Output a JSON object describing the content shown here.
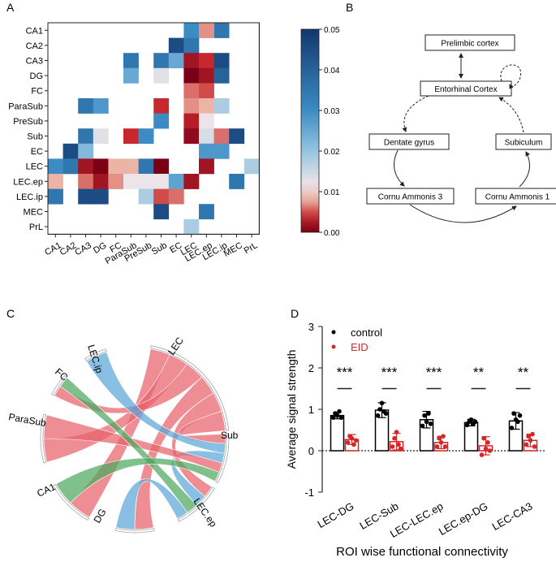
{
  "panels": {
    "a": "A",
    "b": "B",
    "c": "C",
    "d": "D"
  },
  "colors": {
    "control": "#000000",
    "eid": "#d62728",
    "chord_red": "#e8636b",
    "chord_blue": "#5aa6d8",
    "chord_green": "#4da860"
  },
  "chart_data": [
    {
      "type": "heatmap",
      "panel": "A",
      "rows": [
        "CA1",
        "CA2",
        "CA3",
        "DG",
        "FC",
        "ParaSub",
        "PreSub",
        "Sub",
        "EC",
        "LEC",
        "LEC.ep",
        "LEC.ip",
        "MEC",
        "PrL"
      ],
      "columns": [
        "CA1",
        "CA2",
        "CA3",
        "DG",
        "FC",
        "ParaSub",
        "PreSub",
        "Sub",
        "EC",
        "LEC",
        "LEC.ep",
        "LEC.ip",
        "MEC",
        "PrL"
      ],
      "colorbar": {
        "min": 0.0,
        "max": 0.05,
        "ticks": [
          "0.05",
          "0.04",
          "0.03",
          "0.02",
          "0.01",
          "0.00"
        ],
        "tick_values": [
          0.05,
          0.04,
          0.03,
          0.02,
          0.01,
          0.0
        ]
      },
      "cells": [
        [
          "CA1",
          "LEC",
          0.03
        ],
        [
          "CA1",
          "LEC.ip",
          0.035
        ],
        [
          "CA1",
          "LEC.ep",
          0.007
        ],
        [
          "CA2",
          "EC",
          0.045
        ],
        [
          "CA2",
          "LEC",
          0.035
        ],
        [
          "CA3",
          "ParaSub",
          0.035
        ],
        [
          "CA3",
          "Sub",
          0.035
        ],
        [
          "CA3",
          "EC",
          0.025
        ],
        [
          "CA3",
          "LEC",
          0.002
        ],
        [
          "CA3",
          "LEC.ep",
          0.004
        ],
        [
          "CA3",
          "LEC.ip",
          0.045
        ],
        [
          "DG",
          "ParaSub",
          0.025
        ],
        [
          "DG",
          "Sub",
          0.013
        ],
        [
          "DG",
          "LEC",
          0.0
        ],
        [
          "DG",
          "LEC.ep",
          0.002
        ],
        [
          "DG",
          "LEC.ip",
          0.04
        ],
        [
          "FC",
          "LEC",
          0.006
        ],
        [
          "FC",
          "LEC.ep",
          0.005
        ],
        [
          "ParaSub",
          "CA3",
          0.035
        ],
        [
          "ParaSub",
          "DG",
          0.028
        ],
        [
          "ParaSub",
          "Sub",
          0.004
        ],
        [
          "ParaSub",
          "LEC",
          0.007
        ],
        [
          "ParaSub",
          "LEC.ep",
          0.008
        ],
        [
          "ParaSub",
          "LEC.ip",
          0.018
        ],
        [
          "PreSub",
          "Sub",
          0.03
        ],
        [
          "PreSub",
          "LEC",
          0.003
        ],
        [
          "PreSub",
          "LEC.ep",
          0.012
        ],
        [
          "Sub",
          "CA3",
          0.035
        ],
        [
          "Sub",
          "DG",
          0.013
        ],
        [
          "Sub",
          "ParaSub",
          0.004
        ],
        [
          "Sub",
          "PreSub",
          0.03
        ],
        [
          "Sub",
          "LEC",
          0.001
        ],
        [
          "Sub",
          "LEC.ep",
          0.014
        ],
        [
          "Sub",
          "LEC.ip",
          0.006
        ],
        [
          "Sub",
          "MEC",
          0.045
        ],
        [
          "EC",
          "CA2",
          0.045
        ],
        [
          "EC",
          "CA3",
          0.022
        ],
        [
          "EC",
          "LEC.ep",
          0.028
        ],
        [
          "EC",
          "LEC.ip",
          0.028
        ],
        [
          "LEC",
          "CA1",
          0.03
        ],
        [
          "LEC",
          "CA2",
          0.035
        ],
        [
          "LEC",
          "CA3",
          0.002
        ],
        [
          "LEC",
          "DG",
          0.0
        ],
        [
          "LEC",
          "FC",
          0.008
        ],
        [
          "LEC",
          "ParaSub",
          0.008
        ],
        [
          "LEC",
          "PreSub",
          0.035
        ],
        [
          "LEC",
          "Sub",
          0.0
        ],
        [
          "LEC",
          "LEC.ep",
          0.002
        ],
        [
          "LEC",
          "PrL",
          0.018
        ],
        [
          "LEC.ep",
          "CA1",
          0.008
        ],
        [
          "LEC.ep",
          "CA3",
          0.006
        ],
        [
          "LEC.ep",
          "DG",
          0.002
        ],
        [
          "LEC.ep",
          "FC",
          0.007
        ],
        [
          "LEC.ep",
          "ParaSub",
          0.012
        ],
        [
          "LEC.ep",
          "PreSub",
          0.012
        ],
        [
          "LEC.ep",
          "Sub",
          0.012
        ],
        [
          "LEC.ep",
          "EC",
          0.026
        ],
        [
          "LEC.ep",
          "LEC",
          0.002
        ],
        [
          "LEC.ep",
          "MEC",
          0.035
        ],
        [
          "LEC.ip",
          "CA1",
          0.035
        ],
        [
          "LEC.ip",
          "CA3",
          0.045
        ],
        [
          "LEC.ip",
          "DG",
          0.045
        ],
        [
          "LEC.ip",
          "PreSub",
          0.018
        ],
        [
          "LEC.ip",
          "Sub",
          0.005
        ],
        [
          "LEC.ip",
          "EC",
          0.006
        ],
        [
          "MEC",
          "Sub",
          0.045
        ],
        [
          "MEC",
          "LEC.ep",
          0.035
        ],
        [
          "PrL",
          "LEC",
          0.018
        ]
      ]
    },
    {
      "type": "diagram",
      "panel": "B",
      "nodes": [
        "Prelimbic cortex",
        "Entorhinal Cortex",
        "Dentate gyrus",
        "Subiculum",
        "Cornu Ammonis 3",
        "Cornu Ammonis 1"
      ]
    },
    {
      "type": "chord",
      "panel": "C",
      "nodes": [
        "LEC",
        "Sub",
        "LEC.ep",
        "DG",
        "CA1",
        "ParaSub",
        "FC",
        "LEC.ip"
      ],
      "links": [
        {
          "from": "LEC",
          "to": "CA1",
          "color": "red"
        },
        {
          "from": "LEC",
          "to": "ParaSub",
          "color": "red"
        },
        {
          "from": "LEC",
          "to": "FC",
          "color": "red"
        },
        {
          "from": "LEC",
          "to": "DG",
          "color": "red"
        },
        {
          "from": "LEC",
          "to": "LEC.ep",
          "color": "red"
        },
        {
          "from": "LEC",
          "to": "Sub",
          "color": "red"
        },
        {
          "from": "LEC.ip",
          "to": "Sub",
          "color": "blue"
        },
        {
          "from": "LEC.ep",
          "to": "Sub",
          "color": "blue"
        },
        {
          "from": "ParaSub",
          "to": "Sub",
          "color": "red"
        },
        {
          "from": "FC",
          "to": "LEC.ep",
          "color": "green"
        },
        {
          "from": "CA1",
          "to": "Sub",
          "color": "green"
        },
        {
          "from": "DG",
          "to": "LEC.ep",
          "color": "blue"
        }
      ]
    },
    {
      "type": "bar",
      "panel": "D",
      "ylabel": "Average signal strength",
      "xlabel": "ROI wise functional connectivity",
      "ylim": [
        -1,
        3
      ],
      "yticks": [
        "3",
        "2",
        "1",
        "0",
        "-1"
      ],
      "tick_values": [
        3,
        2,
        1,
        0,
        -1
      ],
      "categories": [
        "LEC-DG",
        "LEC-Sub",
        "LEC-LEC.ep",
        "LEC.ep-DG",
        "LEC-CA3"
      ],
      "significance": [
        "***",
        "***",
        "***",
        "**",
        "**"
      ],
      "legend": [
        "control",
        "EID"
      ],
      "series": [
        {
          "name": "control",
          "values": [
            0.85,
            0.98,
            0.75,
            0.68,
            0.72
          ],
          "errors": [
            0.08,
            0.18,
            0.2,
            0.08,
            0.2
          ],
          "points": [
            [
              0.8,
              0.9,
              0.85,
              0.95,
              0.8
            ],
            [
              0.85,
              1.0,
              1.15,
              0.95,
              0.9
            ],
            [
              0.6,
              0.85,
              0.7,
              0.9,
              0.65
            ],
            [
              0.62,
              0.7,
              0.75,
              0.65,
              0.7
            ],
            [
              0.55,
              0.9,
              0.75,
              0.7,
              0.85
            ]
          ]
        },
        {
          "name": "EID",
          "values": [
            0.27,
            0.22,
            0.2,
            0.12,
            0.25
          ],
          "errors": [
            0.12,
            0.2,
            0.15,
            0.22,
            0.15
          ],
          "points": [
            [
              0.2,
              0.35,
              0.3,
              0.15,
              0.25
            ],
            [
              0.1,
              0.3,
              0.45,
              0.15,
              0.05
            ],
            [
              0.1,
              0.3,
              0.2,
              0.35,
              0.1
            ],
            [
              -0.1,
              0.3,
              0.05,
              0.2,
              0.0
            ],
            [
              0.15,
              0.35,
              0.25,
              0.4,
              0.1
            ]
          ]
        }
      ]
    }
  ]
}
